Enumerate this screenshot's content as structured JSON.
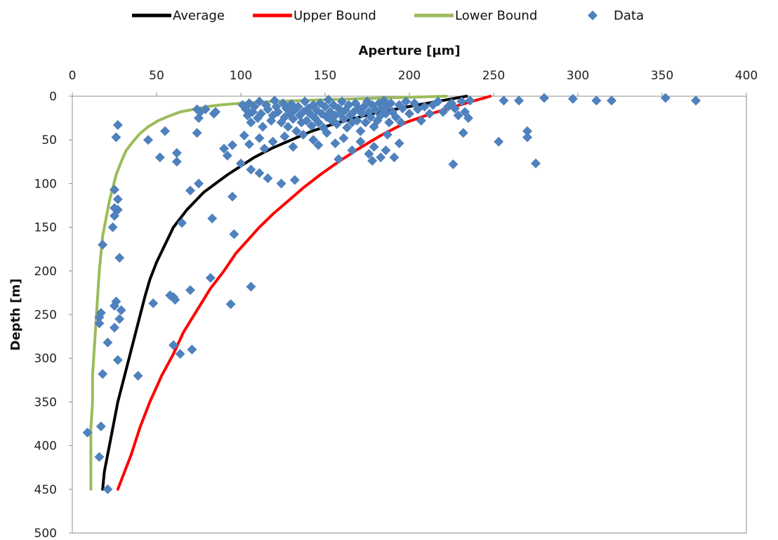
{
  "chart_data": {
    "type": "scatter",
    "title": "",
    "xlabel": "Aperture [μm]",
    "ylabel": "Depth [m]",
    "xlim": [
      0,
      400
    ],
    "ylim": [
      0,
      500
    ],
    "y_inverted": true,
    "x_axis_position": "top",
    "xticks": [
      0,
      50,
      100,
      150,
      200,
      250,
      300,
      350,
      400
    ],
    "yticks": [
      0,
      50,
      100,
      150,
      200,
      250,
      300,
      350,
      400,
      450,
      500
    ],
    "grid": false,
    "legend_position": "top",
    "series": [
      {
        "name": "Average",
        "kind": "line",
        "color": "#000000",
        "points": [
          [
            234,
            0
          ],
          [
            205,
            10
          ],
          [
            178,
            20
          ],
          [
            158,
            30
          ],
          [
            142,
            40
          ],
          [
            130,
            50
          ],
          [
            118,
            60
          ],
          [
            108,
            70
          ],
          [
            100,
            80
          ],
          [
            92,
            90
          ],
          [
            85,
            100
          ],
          [
            78,
            110
          ],
          [
            73,
            120
          ],
          [
            68,
            130
          ],
          [
            64,
            140
          ],
          [
            60,
            150
          ],
          [
            55,
            170
          ],
          [
            50,
            190
          ],
          [
            46,
            210
          ],
          [
            43,
            230
          ],
          [
            39,
            260
          ],
          [
            35,
            290
          ],
          [
            31,
            320
          ],
          [
            27,
            350
          ],
          [
            24,
            380
          ],
          [
            21,
            410
          ],
          [
            19,
            430
          ],
          [
            18,
            450
          ]
        ]
      },
      {
        "name": "Upper Bound",
        "kind": "line",
        "color": "#ff0000",
        "points": [
          [
            248,
            0
          ],
          [
            230,
            10
          ],
          [
            213,
            20
          ],
          [
            198,
            30
          ],
          [
            183,
            45
          ],
          [
            170,
            60
          ],
          [
            158,
            75
          ],
          [
            147,
            90
          ],
          [
            137,
            105
          ],
          [
            128,
            120
          ],
          [
            119,
            135
          ],
          [
            111,
            150
          ],
          [
            104,
            165
          ],
          [
            97,
            180
          ],
          [
            90,
            200
          ],
          [
            82,
            220
          ],
          [
            74,
            245
          ],
          [
            66,
            270
          ],
          [
            60,
            295
          ],
          [
            53,
            320
          ],
          [
            46,
            350
          ],
          [
            40,
            380
          ],
          [
            35,
            410
          ],
          [
            31,
            430
          ],
          [
            27,
            450
          ]
        ]
      },
      {
        "name": "Lower Bound",
        "kind": "line",
        "color": "#9bbb59",
        "points": [
          [
            222,
            0
          ],
          [
            185,
            2
          ],
          [
            150,
            4
          ],
          [
            120,
            6
          ],
          [
            100,
            8
          ],
          [
            88,
            10
          ],
          [
            80,
            12
          ],
          [
            72,
            15
          ],
          [
            64,
            18
          ],
          [
            57,
            23
          ],
          [
            51,
            28
          ],
          [
            45,
            35
          ],
          [
            40,
            43
          ],
          [
            36,
            52
          ],
          [
            32,
            62
          ],
          [
            29,
            75
          ],
          [
            26,
            90
          ],
          [
            24,
            105
          ],
          [
            22,
            120
          ],
          [
            20,
            140
          ],
          [
            18,
            160
          ],
          [
            17,
            180
          ],
          [
            16,
            200
          ],
          [
            15,
            230
          ],
          [
            14,
            260
          ],
          [
            13,
            290
          ],
          [
            12,
            320
          ],
          [
            12,
            350
          ],
          [
            11,
            380
          ],
          [
            11,
            410
          ],
          [
            11,
            430
          ],
          [
            11,
            450
          ]
        ]
      },
      {
        "name": "Data",
        "kind": "scatter",
        "color": "#4f81bd",
        "marker": "diamond",
        "points": [
          [
            101,
            10
          ],
          [
            103,
            15
          ],
          [
            104,
            22
          ],
          [
            105,
            8
          ],
          [
            106,
            30
          ],
          [
            107,
            18
          ],
          [
            108,
            12
          ],
          [
            110,
            25
          ],
          [
            111,
            6
          ],
          [
            112,
            20
          ],
          [
            113,
            35
          ],
          [
            115,
            10
          ],
          [
            116,
            15
          ],
          [
            118,
            28
          ],
          [
            119,
            22
          ],
          [
            120,
            5
          ],
          [
            121,
            12
          ],
          [
            122,
            18
          ],
          [
            124,
            30
          ],
          [
            125,
            8
          ],
          [
            126,
            24
          ],
          [
            127,
            14
          ],
          [
            128,
            35
          ],
          [
            129,
            20
          ],
          [
            130,
            9
          ],
          [
            131,
            26
          ],
          [
            132,
            16
          ],
          [
            133,
            40
          ],
          [
            134,
            12
          ],
          [
            135,
            22
          ],
          [
            136,
            30
          ],
          [
            137,
            18
          ],
          [
            138,
            6
          ],
          [
            139,
            28
          ],
          [
            140,
            14
          ],
          [
            141,
            20
          ],
          [
            142,
            34
          ],
          [
            143,
            10
          ],
          [
            144,
            25
          ],
          [
            145,
            16
          ],
          [
            146,
            30
          ],
          [
            147,
            8
          ],
          [
            148,
            20
          ],
          [
            149,
            36
          ],
          [
            150,
            12
          ],
          [
            151,
            24
          ],
          [
            152,
            4
          ],
          [
            153,
            18
          ],
          [
            154,
            28
          ],
          [
            155,
            10
          ],
          [
            156,
            22
          ],
          [
            157,
            32
          ],
          [
            158,
            14
          ],
          [
            159,
            20
          ],
          [
            160,
            6
          ],
          [
            161,
            26
          ],
          [
            162,
            16
          ],
          [
            163,
            36
          ],
          [
            164,
            10
          ],
          [
            165,
            22
          ],
          [
            166,
            30
          ],
          [
            167,
            18
          ],
          [
            168,
            8
          ],
          [
            169,
            28
          ],
          [
            170,
            14
          ],
          [
            171,
            40
          ],
          [
            172,
            20
          ],
          [
            173,
            12
          ],
          [
            174,
            30
          ],
          [
            175,
            6
          ],
          [
            176,
            18
          ],
          [
            177,
            24
          ],
          [
            178,
            10
          ],
          [
            179,
            35
          ],
          [
            180,
            16
          ],
          [
            181,
            28
          ],
          [
            182,
            8
          ],
          [
            183,
            22
          ],
          [
            184,
            14
          ],
          [
            185,
            5
          ],
          [
            186,
            20
          ],
          [
            187,
            12
          ],
          [
            188,
            30
          ],
          [
            189,
            8
          ],
          [
            190,
            18
          ],
          [
            192,
            24
          ],
          [
            194,
            10
          ],
          [
            196,
            14
          ],
          [
            198,
            6
          ],
          [
            200,
            20
          ],
          [
            203,
            8
          ],
          [
            205,
            15
          ],
          [
            207,
            28
          ],
          [
            209,
            12
          ],
          [
            212,
            20
          ],
          [
            214,
            10
          ],
          [
            217,
            6
          ],
          [
            220,
            18
          ],
          [
            223,
            12
          ],
          [
            225,
            8
          ],
          [
            227,
            14
          ],
          [
            229,
            22
          ],
          [
            231,
            6
          ],
          [
            233,
            18
          ],
          [
            235,
            25
          ],
          [
            236,
            5
          ],
          [
            102,
            45
          ],
          [
            105,
            55
          ],
          [
            111,
            48
          ],
          [
            114,
            60
          ],
          [
            119,
            52
          ],
          [
            126,
            46
          ],
          [
            131,
            58
          ],
          [
            137,
            44
          ],
          [
            143,
            50
          ],
          [
            146,
            56
          ],
          [
            151,
            42
          ],
          [
            156,
            54
          ],
          [
            161,
            48
          ],
          [
            166,
            62
          ],
          [
            171,
            52
          ],
          [
            176,
            66
          ],
          [
            179,
            58
          ],
          [
            183,
            70
          ],
          [
            186,
            62
          ],
          [
            191,
            70
          ],
          [
            194,
            54
          ],
          [
            187,
            44
          ],
          [
            195,
            30
          ],
          [
            158,
            72
          ],
          [
            178,
            74
          ],
          [
            132,
            96
          ],
          [
            124,
            100
          ],
          [
            116,
            94
          ],
          [
            111,
            88
          ],
          [
            106,
            84
          ],
          [
            100,
            77
          ],
          [
            92,
            68
          ],
          [
            95,
            56
          ],
          [
            90,
            60
          ],
          [
            84,
            20
          ],
          [
            85,
            18
          ],
          [
            79,
            15
          ],
          [
            76,
            18
          ],
          [
            74,
            15
          ],
          [
            75,
            25
          ],
          [
            74,
            42
          ],
          [
            55,
            40
          ],
          [
            45,
            50
          ],
          [
            52,
            70
          ],
          [
            62,
            65
          ],
          [
            62,
            75
          ],
          [
            75,
            100
          ],
          [
            70,
            108
          ],
          [
            27,
            33
          ],
          [
            26,
            47
          ],
          [
            25,
            107
          ],
          [
            27,
            118
          ],
          [
            25,
            128
          ],
          [
            27,
            130
          ],
          [
            25,
            137
          ],
          [
            24,
            150
          ],
          [
            18,
            170
          ],
          [
            28,
            185
          ],
          [
            26,
            235
          ],
          [
            25,
            240
          ],
          [
            29,
            245
          ],
          [
            17,
            248
          ],
          [
            16,
            253
          ],
          [
            16,
            260
          ],
          [
            25,
            265
          ],
          [
            28,
            255
          ],
          [
            21,
            282
          ],
          [
            27,
            302
          ],
          [
            18,
            318
          ],
          [
            39,
            320
          ],
          [
            17,
            378
          ],
          [
            16,
            413
          ],
          [
            9,
            385
          ],
          [
            21,
            450
          ],
          [
            48,
            237
          ],
          [
            58,
            228
          ],
          [
            60,
            230
          ],
          [
            61,
            233
          ],
          [
            60,
            285
          ],
          [
            64,
            295
          ],
          [
            71,
            290
          ],
          [
            65,
            145
          ],
          [
            83,
            140
          ],
          [
            95,
            115
          ],
          [
            96,
            158
          ],
          [
            82,
            208
          ],
          [
            70,
            222
          ],
          [
            94,
            238
          ],
          [
            106,
            218
          ],
          [
            226,
            78
          ],
          [
            232,
            42
          ],
          [
            256,
            5
          ],
          [
            265,
            5
          ],
          [
            253,
            52
          ],
          [
            270,
            40
          ],
          [
            270,
            47
          ],
          [
            275,
            77
          ],
          [
            280,
            2
          ],
          [
            297,
            3
          ],
          [
            311,
            5
          ],
          [
            320,
            5
          ],
          [
            352,
            2
          ],
          [
            370,
            5
          ]
        ]
      }
    ]
  }
}
